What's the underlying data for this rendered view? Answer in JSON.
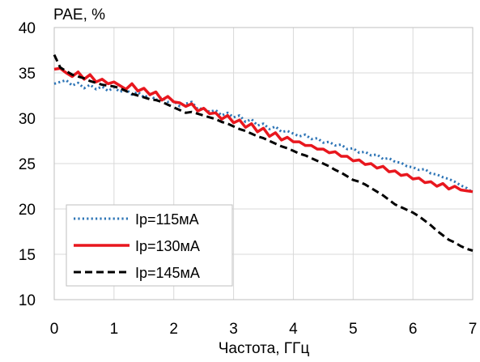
{
  "chart_data": {
    "type": "line",
    "title": "",
    "ylabel": "PAE, %",
    "xlabel": "Частота, ГГц",
    "xlim": [
      0,
      7
    ],
    "ylim": [
      10,
      40
    ],
    "x_ticks": [
      "0",
      "1",
      "2",
      "3",
      "4",
      "5",
      "6",
      "7"
    ],
    "y_ticks": [
      "10",
      "15",
      "20",
      "25",
      "30",
      "35",
      "40"
    ],
    "grid": true,
    "legend_position": "bottom-left",
    "series": [
      {
        "name": "Ip=115мА",
        "color": "#2E75B6",
        "style": "dotted",
        "x": [
          0,
          0.1,
          0.2,
          0.3,
          0.4,
          0.5,
          0.6,
          0.7,
          0.8,
          0.9,
          1.0,
          1.1,
          1.2,
          1.3,
          1.4,
          1.5,
          1.6,
          1.7,
          1.8,
          1.9,
          2.0,
          2.1,
          2.2,
          2.3,
          2.4,
          2.5,
          2.6,
          2.7,
          2.8,
          2.9,
          3.0,
          3.1,
          3.2,
          3.3,
          3.4,
          3.5,
          3.6,
          3.7,
          3.8,
          3.9,
          4.0,
          4.1,
          4.2,
          4.3,
          4.4,
          4.5,
          4.6,
          4.7,
          4.8,
          4.9,
          5.0,
          5.1,
          5.2,
          5.3,
          5.4,
          5.5,
          5.6,
          5.7,
          5.8,
          5.9,
          6.0,
          6.1,
          6.2,
          6.3,
          6.4,
          6.5,
          6.6,
          6.7,
          6.8,
          6.9,
          7.0
        ],
        "values": [
          33.8,
          34.0,
          34.2,
          33.6,
          33.9,
          33.3,
          33.7,
          33.2,
          33.5,
          33.0,
          33.4,
          32.9,
          33.2,
          32.6,
          32.9,
          32.3,
          32.6,
          32.0,
          32.3,
          31.8,
          31.9,
          31.3,
          31.6,
          31.8,
          31.0,
          31.1,
          30.7,
          30.9,
          30.3,
          30.6,
          30.1,
          30.3,
          29.6,
          29.9,
          29.2,
          29.4,
          28.8,
          29.1,
          28.5,
          28.6,
          28.3,
          28.0,
          28.2,
          27.7,
          27.8,
          27.3,
          27.4,
          27.0,
          27.1,
          26.6,
          26.7,
          26.2,
          26.3,
          25.9,
          26.0,
          25.5,
          25.6,
          25.2,
          25.1,
          24.7,
          24.6,
          24.3,
          24.4,
          23.9,
          23.8,
          23.5,
          23.3,
          23.0,
          22.6,
          22.3,
          21.8
        ]
      },
      {
        "name": "Ip=130мА",
        "color": "#E8171E",
        "style": "solid",
        "x": [
          0,
          0.1,
          0.2,
          0.3,
          0.4,
          0.5,
          0.6,
          0.7,
          0.8,
          0.9,
          1.0,
          1.1,
          1.2,
          1.3,
          1.4,
          1.5,
          1.6,
          1.7,
          1.8,
          1.9,
          2.0,
          2.1,
          2.2,
          2.3,
          2.4,
          2.5,
          2.6,
          2.7,
          2.8,
          2.9,
          3.0,
          3.1,
          3.2,
          3.3,
          3.4,
          3.5,
          3.6,
          3.7,
          3.8,
          3.9,
          4.0,
          4.1,
          4.2,
          4.3,
          4.4,
          4.5,
          4.6,
          4.7,
          4.8,
          4.9,
          5.0,
          5.1,
          5.2,
          5.3,
          5.4,
          5.5,
          5.6,
          5.7,
          5.8,
          5.9,
          6.0,
          6.1,
          6.2,
          6.3,
          6.4,
          6.5,
          6.6,
          6.7,
          6.8,
          6.9,
          7.0
        ],
        "values": [
          35.4,
          35.5,
          35.0,
          34.6,
          35.1,
          34.3,
          34.8,
          34.0,
          34.3,
          33.8,
          34.0,
          33.6,
          33.2,
          33.8,
          33.0,
          33.3,
          32.6,
          32.9,
          32.0,
          32.4,
          31.8,
          31.7,
          31.3,
          31.6,
          30.8,
          31.1,
          30.5,
          30.6,
          29.9,
          30.3,
          29.5,
          29.8,
          29.0,
          29.4,
          28.5,
          28.9,
          28.0,
          28.4,
          27.6,
          27.9,
          27.4,
          27.4,
          27.0,
          27.0,
          26.6,
          26.6,
          26.2,
          26.3,
          25.8,
          25.8,
          25.3,
          25.4,
          24.9,
          25.0,
          24.5,
          24.7,
          24.1,
          24.2,
          23.7,
          23.8,
          23.3,
          23.4,
          22.9,
          23.0,
          22.5,
          22.8,
          22.2,
          22.5,
          22.1,
          22.0,
          21.9
        ]
      },
      {
        "name": "Ip=145мА",
        "color": "#000000",
        "style": "dashed",
        "x": [
          0,
          0.1,
          0.2,
          0.3,
          0.4,
          0.5,
          0.6,
          0.7,
          0.8,
          0.9,
          1.0,
          1.1,
          1.2,
          1.3,
          1.4,
          1.5,
          1.6,
          1.7,
          1.8,
          1.9,
          2.0,
          2.1,
          2.2,
          2.3,
          2.4,
          2.5,
          2.6,
          2.7,
          2.8,
          2.9,
          3.0,
          3.1,
          3.2,
          3.3,
          3.4,
          3.5,
          3.6,
          3.7,
          3.8,
          3.9,
          4.0,
          4.1,
          4.2,
          4.3,
          4.4,
          4.5,
          4.6,
          4.7,
          4.8,
          4.9,
          5.0,
          5.1,
          5.2,
          5.3,
          5.4,
          5.5,
          5.6,
          5.7,
          5.8,
          5.9,
          6.0,
          6.1,
          6.2,
          6.3,
          6.4,
          6.5,
          6.6,
          6.7,
          6.8,
          6.9,
          7.0
        ],
        "values": [
          37.0,
          35.6,
          35.2,
          34.8,
          34.6,
          34.4,
          34.1,
          33.9,
          33.7,
          33.6,
          33.5,
          33.3,
          33.0,
          32.7,
          32.5,
          32.3,
          32.1,
          32.0,
          31.8,
          31.5,
          31.2,
          30.9,
          30.6,
          30.7,
          30.5,
          30.3,
          30.1,
          29.9,
          29.6,
          29.4,
          29.1,
          28.8,
          28.6,
          28.3,
          28.0,
          27.8,
          27.5,
          27.2,
          26.9,
          26.7,
          26.4,
          26.1,
          25.9,
          25.6,
          25.3,
          25.0,
          24.7,
          24.3,
          24.0,
          23.6,
          23.2,
          23.0,
          22.7,
          22.3,
          21.9,
          21.5,
          21.0,
          20.5,
          20.2,
          19.9,
          19.6,
          19.2,
          18.7,
          18.2,
          17.6,
          17.1,
          16.6,
          16.3,
          15.9,
          15.6,
          15.4
        ]
      }
    ]
  }
}
